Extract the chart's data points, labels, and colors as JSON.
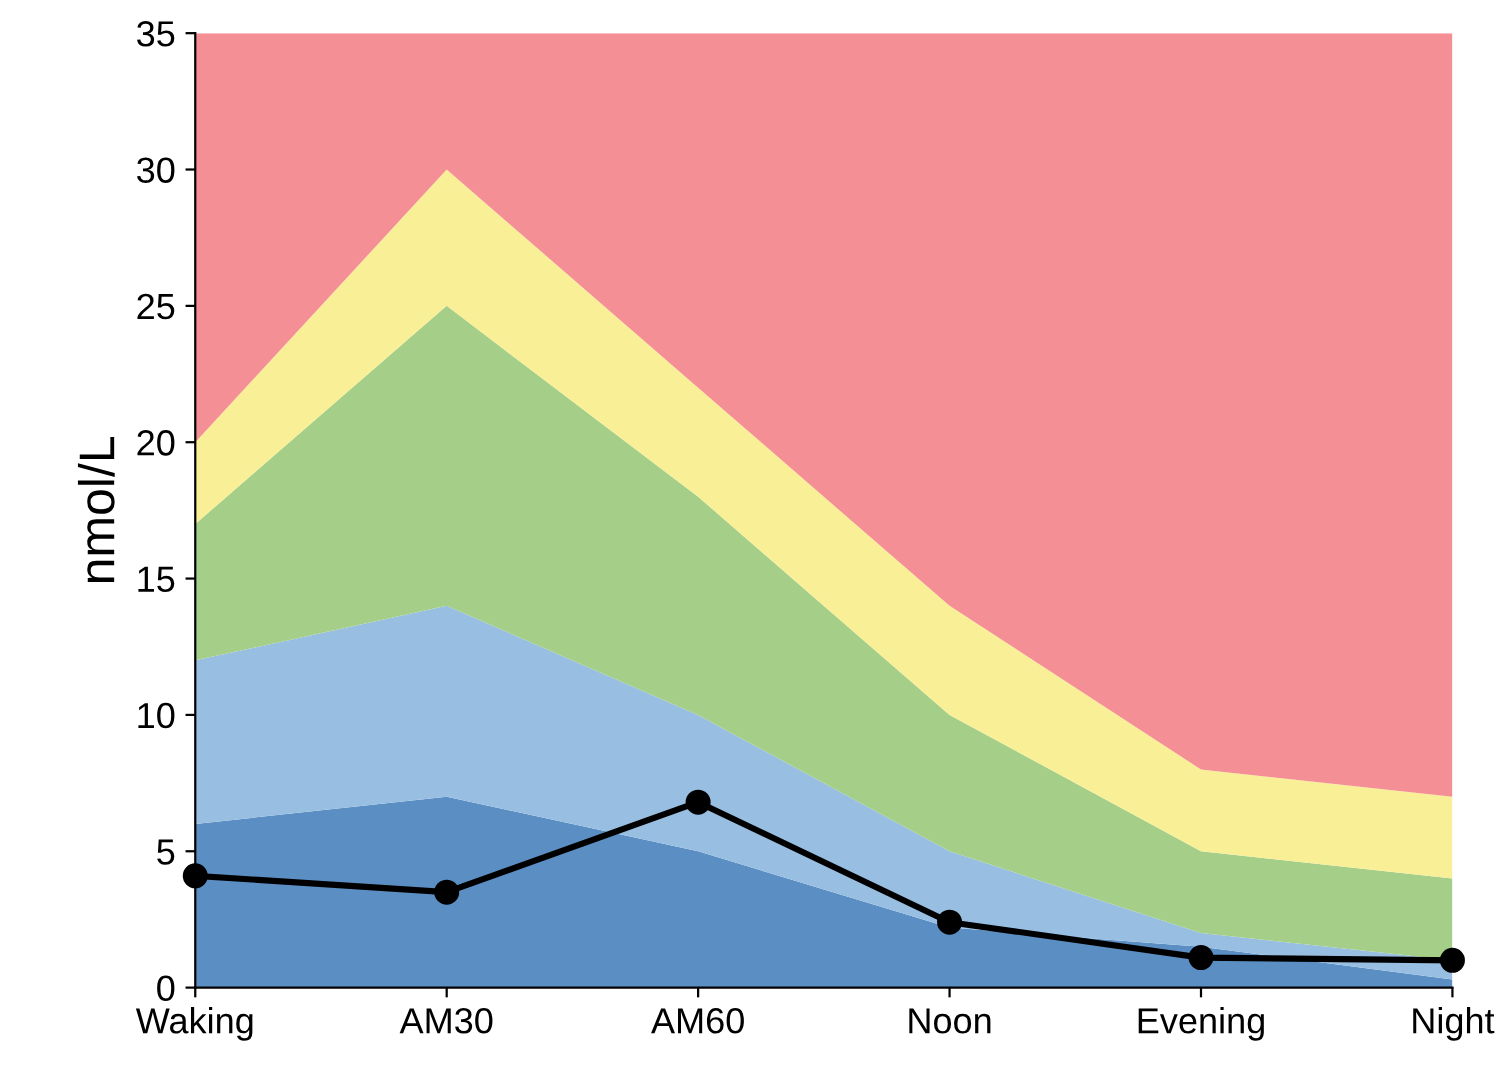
{
  "chart_data": {
    "type": "area",
    "stacked": true,
    "ylabel": "nmol/L",
    "categories": [
      "Waking",
      "AM30",
      "AM60",
      "Noon",
      "Evening",
      "Night"
    ],
    "ylim": [
      0,
      35
    ],
    "yticks": [
      0,
      5,
      10,
      15,
      20,
      25,
      30,
      35
    ],
    "grid": false,
    "legend": false,
    "series": [
      {
        "color": "#5b8fc4",
        "values": [
          6,
          7,
          5,
          2.2,
          1.5,
          0.3
        ]
      },
      {
        "color": "#98bfe2",
        "values": [
          6,
          7,
          5,
          2.8,
          0.5,
          0.7
        ]
      },
      {
        "color": "#a5cf88",
        "values": [
          5,
          11,
          8,
          5,
          3,
          3
        ]
      },
      {
        "color": "#f9ef96",
        "values": [
          3,
          5,
          4,
          4,
          3,
          3
        ]
      },
      {
        "color": "#f48f96",
        "values": [
          15,
          5,
          13,
          21,
          27,
          28
        ]
      },
      {
        "type": "line",
        "color": "#000000",
        "marker": "circle",
        "line_style": "solid",
        "values": [
          4.1,
          3.5,
          6.8,
          2.4,
          1.1,
          1.0
        ]
      }
    ]
  }
}
